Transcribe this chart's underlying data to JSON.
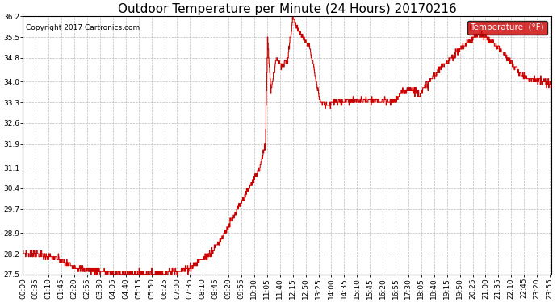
{
  "title": "Outdoor Temperature per Minute (24 Hours) 20170216",
  "copyright": "Copyright 2017 Cartronics.com",
  "legend_label": "Temperature  (°F)",
  "legend_bg": "#cc0000",
  "legend_text_color": "#ffffff",
  "line_color": "#cc0000",
  "bg_color": "#ffffff",
  "plot_bg_color": "#ffffff",
  "grid_color": "#aaaaaa",
  "ylim": [
    27.5,
    36.2
  ],
  "yticks": [
    27.5,
    28.2,
    28.9,
    29.7,
    30.4,
    31.1,
    31.9,
    32.6,
    33.3,
    34.0,
    34.8,
    35.5,
    36.2
  ],
  "title_fontsize": 11,
  "copyright_fontsize": 6.5,
  "tick_fontsize": 6.5,
  "xtick_step_minutes": 35,
  "total_minutes": 1440
}
